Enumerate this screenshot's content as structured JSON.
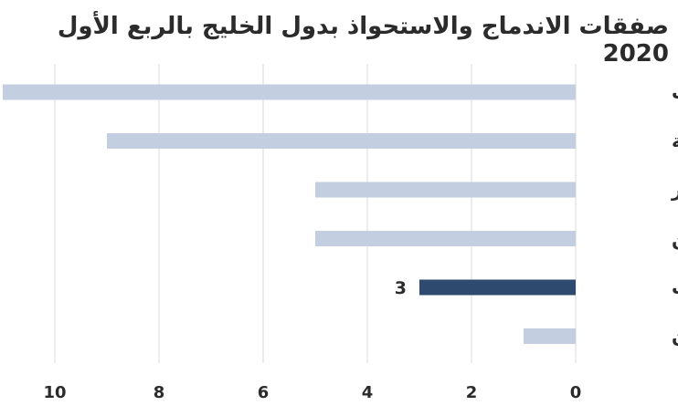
{
  "chart_data": {
    "type": "bar",
    "orientation": "horizontal",
    "x_axis_direction": "right-to-left",
    "title": "صفقات الاندماج والاستحواذ بدول الخليج بالربع الأول 2020",
    "categories": [
      "الإمارات",
      "السعودية",
      "قطر",
      "البحرين",
      "الكويت",
      "عمان"
    ],
    "values": [
      11,
      9,
      5,
      5,
      3,
      1
    ],
    "highlight_index": 4,
    "data_labels": {
      "4": "3"
    },
    "xlim": [
      0,
      11
    ],
    "x_ticks": [
      0,
      2,
      4,
      6,
      8,
      10
    ],
    "grid": "vertical",
    "colors": {
      "bar": "#c3cfe0",
      "highlight": "#2f4a6f",
      "grid": "#d9d9d9",
      "text": "#2b2b2b"
    }
  }
}
